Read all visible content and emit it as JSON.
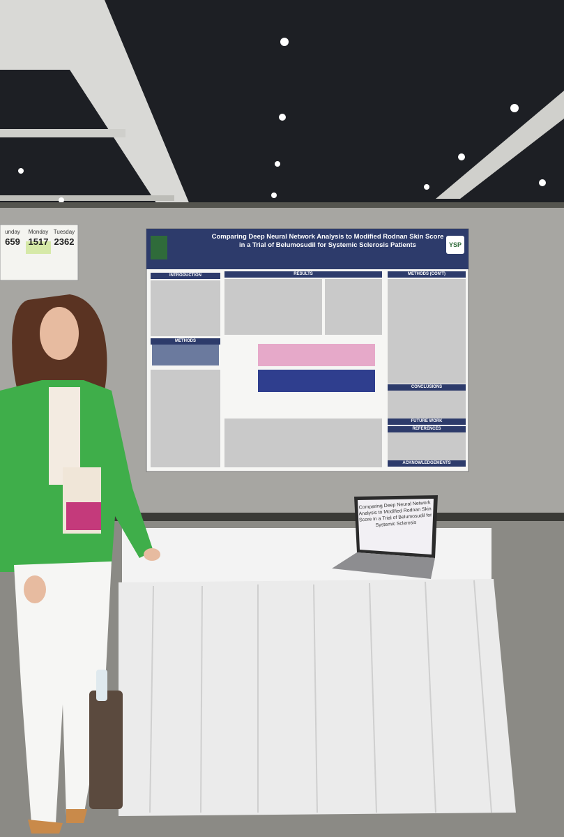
{
  "sign": {
    "days": [
      {
        "day": "unday",
        "count": "659"
      },
      {
        "day": "Monday",
        "count": "1517"
      },
      {
        "day": "Tuesday",
        "count": "2362"
      }
    ]
  },
  "poster": {
    "title": "Comparing Deep Neural Network Analysis to Modified Rodnan Skin Score in a Trial of Belumosudil for Systemic Sclerosis Patients",
    "logo": "YSP",
    "left_sections": [
      "INTRODUCTION",
      "METHODS"
    ],
    "middle_sections": [
      "RESULTS"
    ],
    "right_sections": [
      "METHODS (CON'T)",
      "CONCLUSIONS",
      "FUTURE WORK",
      "REFERENCES",
      "ACKNOWLEDGEMENTS"
    ]
  },
  "laptop": {
    "screen_title": "Comparing Deep Neural Network Analysis to Modified Rodnan Skin Score in a Trial of Belumosudil for Systemic Sclerosis"
  }
}
